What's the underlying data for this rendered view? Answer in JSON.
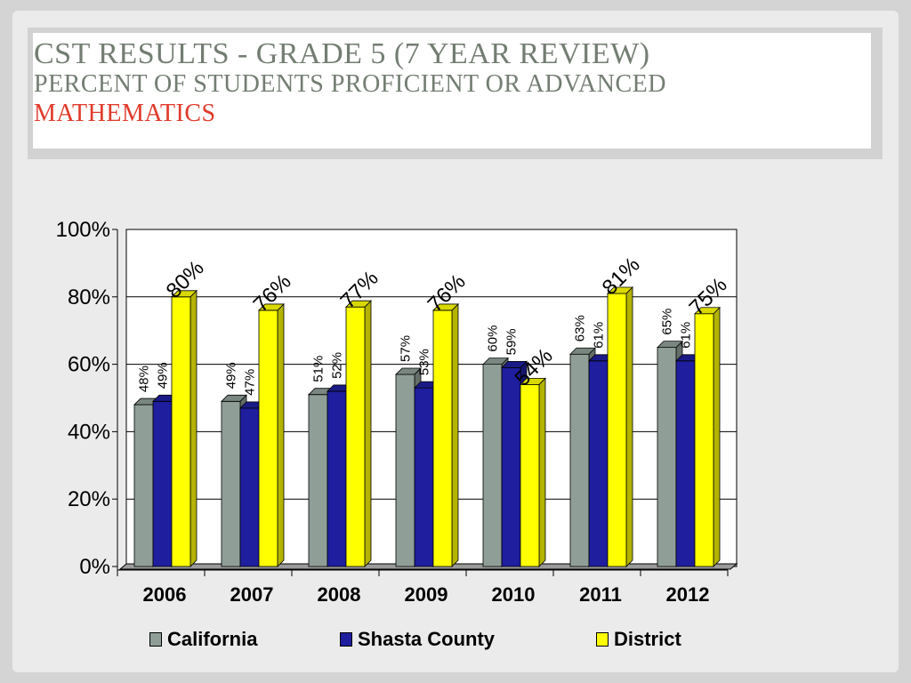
{
  "slide": {
    "title": "CST Results - Grade 5 (7 Year Review)",
    "subtitle": "Percent of Students Proficient or Advanced",
    "subject": "Mathematics"
  },
  "colors": {
    "california": "#8f9f98",
    "shasta": "#1e1e9e",
    "district": "#ffff00",
    "subject_text": "#e03a2a"
  },
  "chart_data": {
    "type": "bar",
    "categories": [
      "2006",
      "2007",
      "2008",
      "2009",
      "2010",
      "2011",
      "2012"
    ],
    "series": [
      {
        "name": "California",
        "values": [
          48,
          49,
          51,
          57,
          60,
          63,
          65
        ],
        "labels": [
          "48%",
          "49%",
          "51%",
          "57%",
          "60%",
          "63%",
          "65%"
        ]
      },
      {
        "name": "Shasta County",
        "values": [
          49,
          47,
          52,
          53,
          59,
          61,
          61
        ],
        "labels": [
          "49%",
          "47%",
          "52%",
          "53%",
          "59%",
          "61%",
          "61%"
        ]
      },
      {
        "name": "District",
        "values": [
          80,
          76,
          77,
          76,
          54,
          81,
          75
        ],
        "labels": [
          "80%",
          "76%",
          "77%",
          "76%",
          "54%",
          "81%",
          "75%"
        ]
      }
    ],
    "yticks": [
      "0%",
      "20%",
      "40%",
      "60%",
      "80%",
      "100%"
    ],
    "ylim": [
      0,
      100
    ],
    "grid": true,
    "legend": "bottom"
  }
}
